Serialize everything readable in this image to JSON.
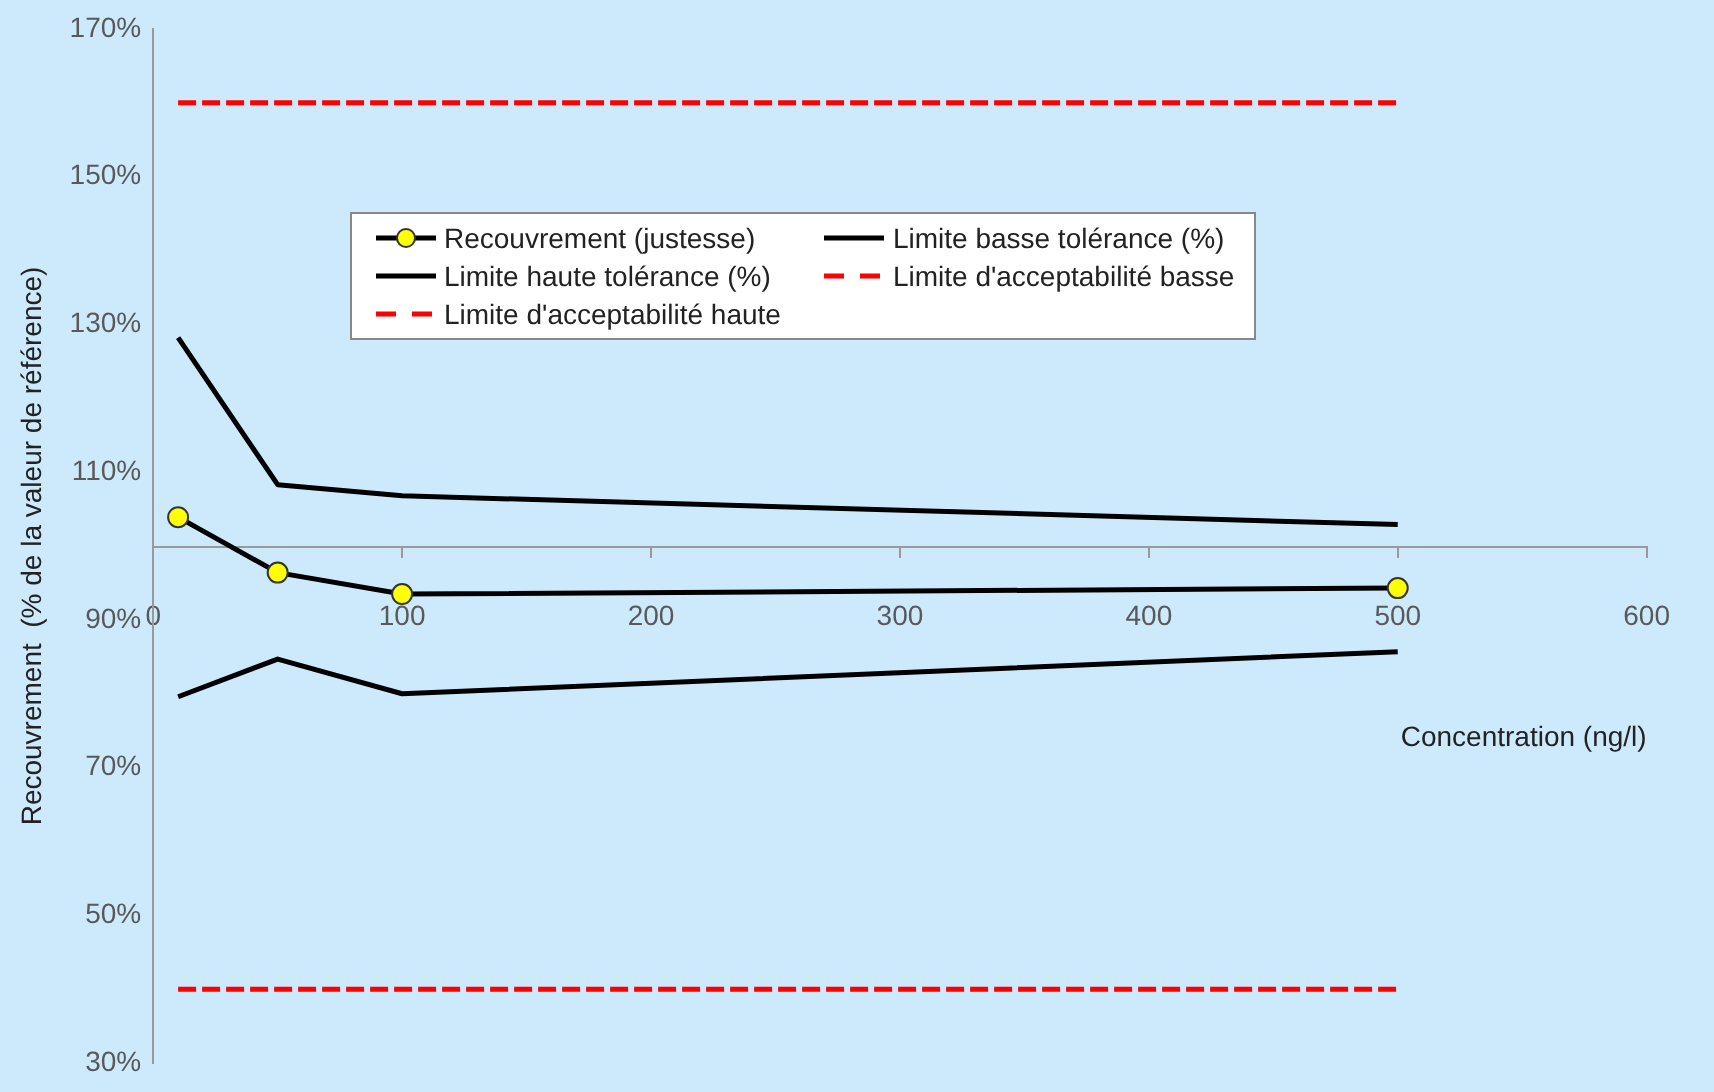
{
  "chart_data": {
    "type": "line",
    "xlabel": "Concentration (ng/l)",
    "ylabel": "Recouvrement  (% de la valeur de référence)",
    "x": [
      10,
      50,
      100,
      500
    ],
    "series": [
      {
        "name": "Recouvrement (justesse)",
        "color": "#ffff00",
        "marker": "circle",
        "line_style": "solid",
        "values": [
          103.9,
          96.4,
          93.5,
          94.3
        ]
      },
      {
        "name": "Limite basse tolérance (%)",
        "color": "#000000",
        "marker": "none",
        "line_style": "solid",
        "values": [
          79.6,
          84.7,
          80.0,
          85.7
        ]
      },
      {
        "name": "Limite haute tolérance (%)",
        "color": "#000000",
        "marker": "none",
        "line_style": "solid",
        "values": [
          128.2,
          108.3,
          106.8,
          102.9
        ]
      },
      {
        "name": "Limite d'acceptabilité basse",
        "color": "#ff0000",
        "marker": "none",
        "line_style": "dashed",
        "values": [
          40,
          40,
          40,
          40
        ]
      },
      {
        "name": "Limite d'acceptabilité haute",
        "color": "#ff0000",
        "marker": "none",
        "line_style": "dashed",
        "values": [
          160,
          160,
          160,
          160
        ]
      }
    ],
    "xlim": [
      0,
      600
    ],
    "xticks": [
      0,
      100,
      200,
      300,
      400,
      500,
      600
    ],
    "ylim": [
      30,
      170
    ],
    "yticks": [
      {
        "value": 30,
        "label": "30%"
      },
      {
        "value": 50,
        "label": "50%"
      },
      {
        "value": 70,
        "label": "70%"
      },
      {
        "value": 90,
        "label": "90%"
      },
      {
        "value": 110,
        "label": "110%"
      },
      {
        "value": 130,
        "label": "130%"
      },
      {
        "value": 150,
        "label": "150%"
      },
      {
        "value": 170,
        "label": "170%"
      }
    ],
    "grid": false,
    "legend": "top"
  }
}
